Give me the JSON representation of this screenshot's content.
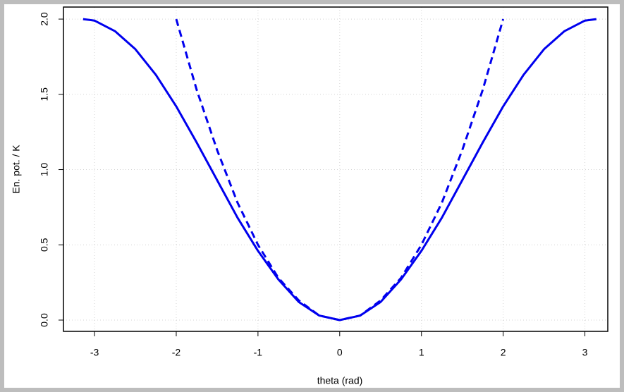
{
  "chart_data": {
    "type": "line",
    "x_label": "theta (rad)",
    "y_label": "En. pot. / K",
    "x": [
      -3.14,
      -3,
      -2.75,
      -2.5,
      -2.25,
      -2,
      -1.75,
      -1.5,
      -1.25,
      -1,
      -0.75,
      -0.5,
      -0.25,
      0,
      0.25,
      0.5,
      0.75,
      1,
      1.25,
      1.5,
      1.75,
      2,
      2.25,
      2.5,
      2.75,
      3,
      3.14
    ],
    "series": [
      {
        "color": "#0000ee",
        "dash": false,
        "values": [
          2.0,
          1.99,
          1.92,
          1.8,
          1.63,
          1.42,
          1.18,
          0.93,
          0.68,
          0.46,
          0.27,
          0.12,
          0.03,
          0,
          0.03,
          0.12,
          0.27,
          0.46,
          0.68,
          0.93,
          1.18,
          1.42,
          1.63,
          1.8,
          1.92,
          1.99,
          2.0
        ]
      },
      {
        "color": "#0000ee",
        "dash": true,
        "values": [
          null,
          null,
          null,
          null,
          null,
          2.0,
          1.53,
          1.13,
          0.78,
          0.5,
          0.28,
          0.13,
          0.03,
          0,
          0.03,
          0.13,
          0.28,
          0.5,
          0.78,
          1.13,
          1.53,
          2.0,
          null,
          null,
          null,
          null,
          null
        ]
      }
    ],
    "xlim": [
      -3.38,
      3.28
    ],
    "ylim": [
      -0.075,
      2.08
    ],
    "xticks": [
      -3,
      -2,
      -1,
      0,
      1,
      2,
      3
    ],
    "yticks": [
      {
        "value": 0,
        "label": "0.0"
      },
      {
        "value": 0.5,
        "label": "0.5"
      },
      {
        "value": 1,
        "label": "1.0"
      },
      {
        "value": 1.5,
        "label": "1.5"
      },
      {
        "value": 2,
        "label": "2.0"
      }
    ],
    "grid": true
  }
}
